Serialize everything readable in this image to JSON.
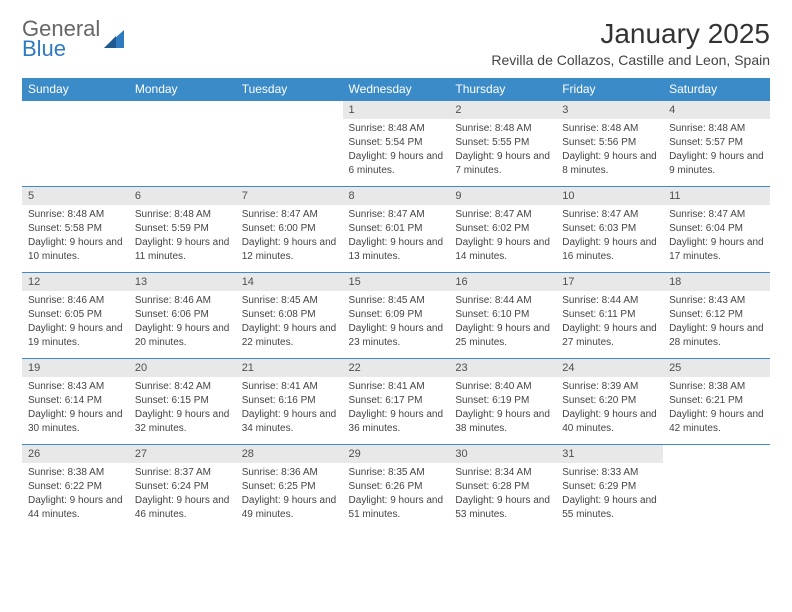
{
  "logo": {
    "general": "General",
    "blue": "Blue"
  },
  "title": "January 2025",
  "subtitle": "Revilla de Collazos, Castille and Leon, Spain",
  "colors": {
    "header_bg": "#3b8bc8",
    "header_text": "#ffffff",
    "daynum_bg": "#e8e8e8",
    "row_border": "#3b8bc8",
    "text": "#333333",
    "logo_blue": "#2f7bbf"
  },
  "dayHeaders": [
    "Sunday",
    "Monday",
    "Tuesday",
    "Wednesday",
    "Thursday",
    "Friday",
    "Saturday"
  ],
  "weeks": [
    [
      {
        "n": "",
        "sr": "",
        "ss": "",
        "dl": ""
      },
      {
        "n": "",
        "sr": "",
        "ss": "",
        "dl": ""
      },
      {
        "n": "",
        "sr": "",
        "ss": "",
        "dl": ""
      },
      {
        "n": "1",
        "sr": "Sunrise: 8:48 AM",
        "ss": "Sunset: 5:54 PM",
        "dl": "Daylight: 9 hours and 6 minutes."
      },
      {
        "n": "2",
        "sr": "Sunrise: 8:48 AM",
        "ss": "Sunset: 5:55 PM",
        "dl": "Daylight: 9 hours and 7 minutes."
      },
      {
        "n": "3",
        "sr": "Sunrise: 8:48 AM",
        "ss": "Sunset: 5:56 PM",
        "dl": "Daylight: 9 hours and 8 minutes."
      },
      {
        "n": "4",
        "sr": "Sunrise: 8:48 AM",
        "ss": "Sunset: 5:57 PM",
        "dl": "Daylight: 9 hours and 9 minutes."
      }
    ],
    [
      {
        "n": "5",
        "sr": "Sunrise: 8:48 AM",
        "ss": "Sunset: 5:58 PM",
        "dl": "Daylight: 9 hours and 10 minutes."
      },
      {
        "n": "6",
        "sr": "Sunrise: 8:48 AM",
        "ss": "Sunset: 5:59 PM",
        "dl": "Daylight: 9 hours and 11 minutes."
      },
      {
        "n": "7",
        "sr": "Sunrise: 8:47 AM",
        "ss": "Sunset: 6:00 PM",
        "dl": "Daylight: 9 hours and 12 minutes."
      },
      {
        "n": "8",
        "sr": "Sunrise: 8:47 AM",
        "ss": "Sunset: 6:01 PM",
        "dl": "Daylight: 9 hours and 13 minutes."
      },
      {
        "n": "9",
        "sr": "Sunrise: 8:47 AM",
        "ss": "Sunset: 6:02 PM",
        "dl": "Daylight: 9 hours and 14 minutes."
      },
      {
        "n": "10",
        "sr": "Sunrise: 8:47 AM",
        "ss": "Sunset: 6:03 PM",
        "dl": "Daylight: 9 hours and 16 minutes."
      },
      {
        "n": "11",
        "sr": "Sunrise: 8:47 AM",
        "ss": "Sunset: 6:04 PM",
        "dl": "Daylight: 9 hours and 17 minutes."
      }
    ],
    [
      {
        "n": "12",
        "sr": "Sunrise: 8:46 AM",
        "ss": "Sunset: 6:05 PM",
        "dl": "Daylight: 9 hours and 19 minutes."
      },
      {
        "n": "13",
        "sr": "Sunrise: 8:46 AM",
        "ss": "Sunset: 6:06 PM",
        "dl": "Daylight: 9 hours and 20 minutes."
      },
      {
        "n": "14",
        "sr": "Sunrise: 8:45 AM",
        "ss": "Sunset: 6:08 PM",
        "dl": "Daylight: 9 hours and 22 minutes."
      },
      {
        "n": "15",
        "sr": "Sunrise: 8:45 AM",
        "ss": "Sunset: 6:09 PM",
        "dl": "Daylight: 9 hours and 23 minutes."
      },
      {
        "n": "16",
        "sr": "Sunrise: 8:44 AM",
        "ss": "Sunset: 6:10 PM",
        "dl": "Daylight: 9 hours and 25 minutes."
      },
      {
        "n": "17",
        "sr": "Sunrise: 8:44 AM",
        "ss": "Sunset: 6:11 PM",
        "dl": "Daylight: 9 hours and 27 minutes."
      },
      {
        "n": "18",
        "sr": "Sunrise: 8:43 AM",
        "ss": "Sunset: 6:12 PM",
        "dl": "Daylight: 9 hours and 28 minutes."
      }
    ],
    [
      {
        "n": "19",
        "sr": "Sunrise: 8:43 AM",
        "ss": "Sunset: 6:14 PM",
        "dl": "Daylight: 9 hours and 30 minutes."
      },
      {
        "n": "20",
        "sr": "Sunrise: 8:42 AM",
        "ss": "Sunset: 6:15 PM",
        "dl": "Daylight: 9 hours and 32 minutes."
      },
      {
        "n": "21",
        "sr": "Sunrise: 8:41 AM",
        "ss": "Sunset: 6:16 PM",
        "dl": "Daylight: 9 hours and 34 minutes."
      },
      {
        "n": "22",
        "sr": "Sunrise: 8:41 AM",
        "ss": "Sunset: 6:17 PM",
        "dl": "Daylight: 9 hours and 36 minutes."
      },
      {
        "n": "23",
        "sr": "Sunrise: 8:40 AM",
        "ss": "Sunset: 6:19 PM",
        "dl": "Daylight: 9 hours and 38 minutes."
      },
      {
        "n": "24",
        "sr": "Sunrise: 8:39 AM",
        "ss": "Sunset: 6:20 PM",
        "dl": "Daylight: 9 hours and 40 minutes."
      },
      {
        "n": "25",
        "sr": "Sunrise: 8:38 AM",
        "ss": "Sunset: 6:21 PM",
        "dl": "Daylight: 9 hours and 42 minutes."
      }
    ],
    [
      {
        "n": "26",
        "sr": "Sunrise: 8:38 AM",
        "ss": "Sunset: 6:22 PM",
        "dl": "Daylight: 9 hours and 44 minutes."
      },
      {
        "n": "27",
        "sr": "Sunrise: 8:37 AM",
        "ss": "Sunset: 6:24 PM",
        "dl": "Daylight: 9 hours and 46 minutes."
      },
      {
        "n": "28",
        "sr": "Sunrise: 8:36 AM",
        "ss": "Sunset: 6:25 PM",
        "dl": "Daylight: 9 hours and 49 minutes."
      },
      {
        "n": "29",
        "sr": "Sunrise: 8:35 AM",
        "ss": "Sunset: 6:26 PM",
        "dl": "Daylight: 9 hours and 51 minutes."
      },
      {
        "n": "30",
        "sr": "Sunrise: 8:34 AM",
        "ss": "Sunset: 6:28 PM",
        "dl": "Daylight: 9 hours and 53 minutes."
      },
      {
        "n": "31",
        "sr": "Sunrise: 8:33 AM",
        "ss": "Sunset: 6:29 PM",
        "dl": "Daylight: 9 hours and 55 minutes."
      },
      {
        "n": "",
        "sr": "",
        "ss": "",
        "dl": ""
      }
    ]
  ]
}
